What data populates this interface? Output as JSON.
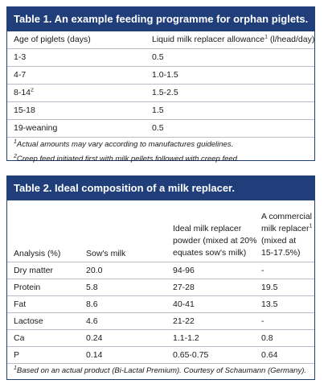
{
  "table1": {
    "title": "Table 1. An example feeding programme for orphan piglets.",
    "headers": [
      "Age of piglets (days)",
      "Liquid milk replacer allowance",
      "1",
      " (l/head/day)"
    ],
    "rows": [
      {
        "age": "1-3",
        "sup": "",
        "allowance": "0.5"
      },
      {
        "age": "4-7",
        "sup": "",
        "allowance": "1.0-1.5"
      },
      {
        "age": "8-14",
        "sup": "2",
        "allowance": "1.5-2.5"
      },
      {
        "age": "15-18",
        "sup": "",
        "allowance": "1.5"
      },
      {
        "age": "19-weaning",
        "sup": "",
        "allowance": "0.5"
      }
    ],
    "notes": [
      {
        "sup": "1",
        "text": "Actual amounts may vary according to manufactures guidelines."
      },
      {
        "sup": "2",
        "text": "Creep feed initiated first with milk pellets followed with creep feed."
      }
    ]
  },
  "table2": {
    "title": "Table 2. Ideal composition of a milk replacer.",
    "headers": {
      "analysis": "Analysis (%)",
      "sow": "Sow's milk",
      "ideal_l1": "Ideal milk replacer",
      "ideal_l2": "powder (mixed at 20%",
      "ideal_l3": "equates sow's milk)",
      "comm_l1": "A commercial",
      "comm_l2": "milk replacer",
      "comm_sup": "1",
      "comm_l3": "(mixed at",
      "comm_l4": "15-17.5%)"
    },
    "rows": [
      {
        "analysis": "Dry matter",
        "sow": "20.0",
        "ideal": "94-96",
        "commercial": "-"
      },
      {
        "analysis": "Protein",
        "sow": "5.8",
        "ideal": "27-28",
        "commercial": "19.5"
      },
      {
        "analysis": "Fat",
        "sow": "8.6",
        "ideal": "40-41",
        "commercial": "13.5"
      },
      {
        "analysis": "Lactose",
        "sow": "4.6",
        "ideal": "21-22",
        "commercial": "-"
      },
      {
        "analysis": "Ca",
        "sow": "0.24",
        "ideal": "1.1-1.2",
        "commercial": "0.8"
      },
      {
        "analysis": "P",
        "sow": "0.14",
        "ideal": "0.65-0.75",
        "commercial": "0.64"
      }
    ],
    "note": {
      "sup": "1",
      "text": "Based on an actual product (Bi-Lactal Premium). Courtesy of Schaumann (Germany)."
    }
  }
}
